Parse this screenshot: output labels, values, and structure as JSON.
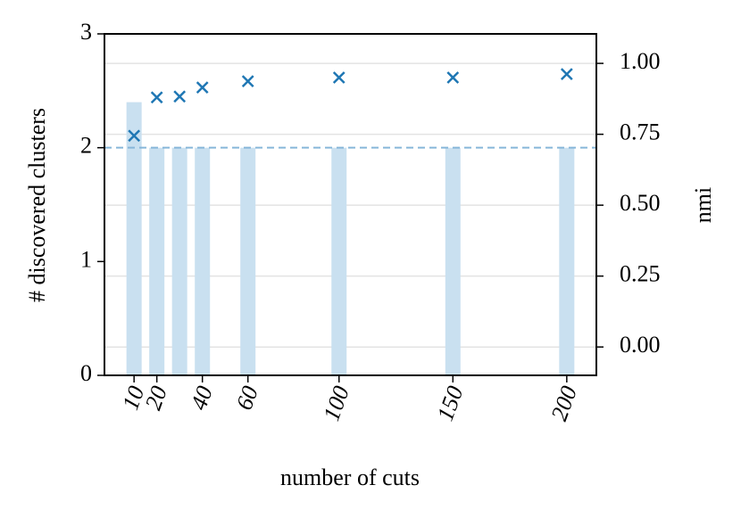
{
  "chart_data": {
    "type": "bar-scatter",
    "x_label": "number of cuts",
    "y_label": "# discovered clusters",
    "y2_label": "nmi",
    "x": [
      10,
      20,
      30,
      40,
      60,
      100,
      150,
      200
    ],
    "series": [
      {
        "type": "bar",
        "color": "#c9e0f0",
        "values": [
          2.4,
          2,
          2,
          2,
          2,
          2,
          2,
          2
        ]
      },
      {
        "type": "scatter",
        "axis": "y2",
        "color": "#1f77b4",
        "values": [
          0.745,
          0.88,
          0.883,
          0.915,
          0.937,
          0.95,
          0.95,
          0.962
        ]
      }
    ],
    "hline": {
      "value": 2,
      "color": "#86b6d9"
    },
    "xlim": [
      -3,
      213
    ],
    "xticks": [
      10,
      20,
      40,
      60,
      100,
      150,
      200
    ],
    "ylim": [
      0,
      3
    ],
    "yticks": [
      0,
      1,
      2,
      3
    ],
    "y2lim": [
      -0.1,
      1.104
    ],
    "y2ticks": [
      {
        "value": 0,
        "label": "0.00"
      },
      {
        "value": 0.25,
        "label": "0.25"
      },
      {
        "value": 0.5,
        "label": "0.50"
      },
      {
        "value": 0.75,
        "label": "0.75"
      },
      {
        "value": 1,
        "label": "1.00"
      }
    ],
    "y2grid": true
  }
}
